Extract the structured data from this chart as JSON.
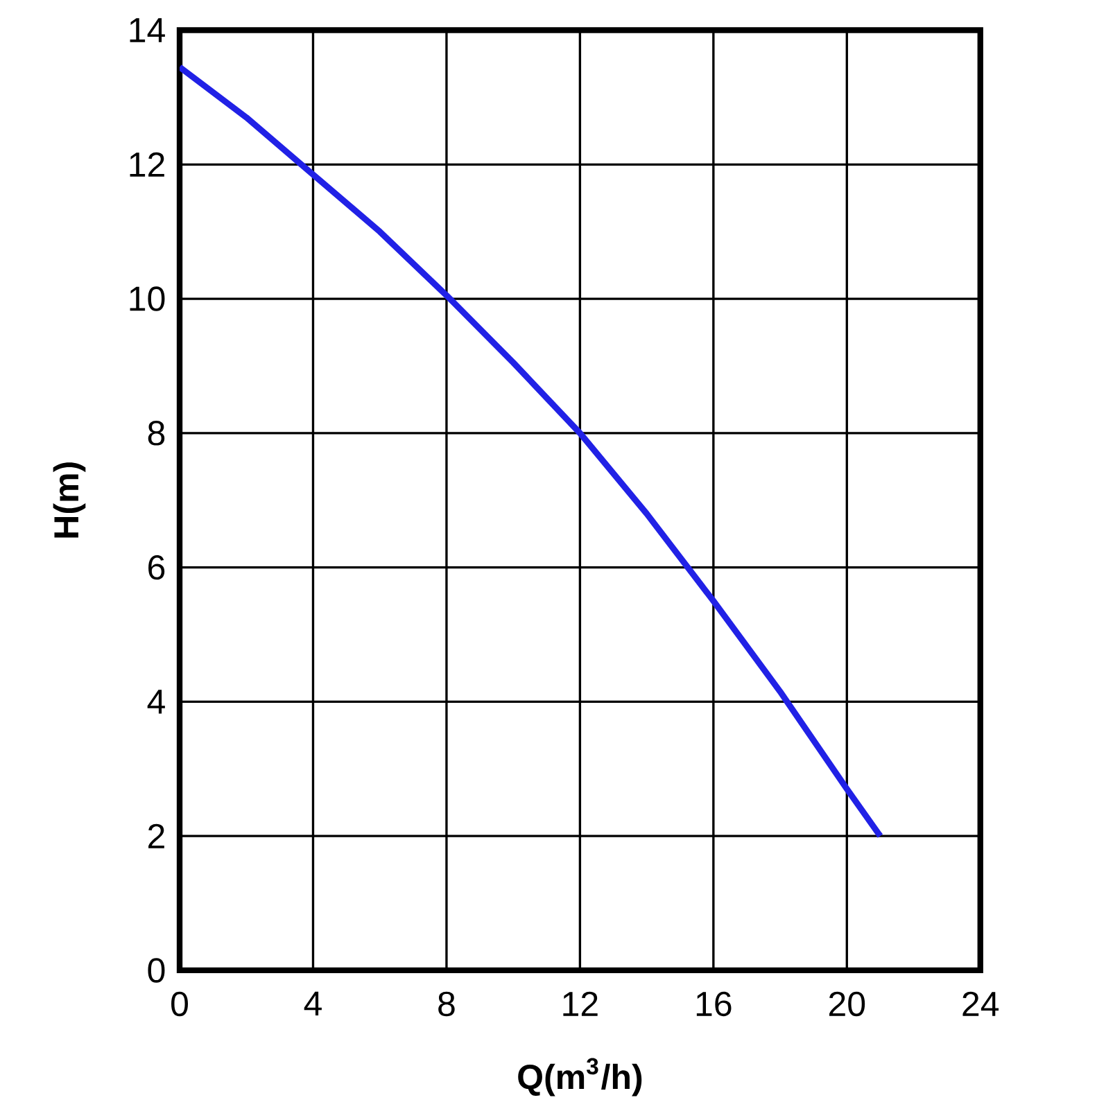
{
  "chart_data": {
    "type": "line",
    "xlabel": "Q(m$^{3}$/h)",
    "ylabel": "H(m)",
    "x": [
      0,
      2,
      4,
      6,
      8,
      10,
      12,
      14,
      16,
      18,
      20,
      21
    ],
    "series": [
      {
        "color": "#2121e6",
        "values": [
          13.45,
          12.7,
          11.85,
          11.0,
          10.05,
          9.05,
          8.0,
          6.8,
          5.5,
          4.15,
          2.7,
          2.0
        ]
      }
    ],
    "xlim": [
      0,
      24
    ],
    "ylim": [
      0,
      14
    ],
    "xticks": [
      0,
      4,
      8,
      12,
      16,
      20,
      24
    ],
    "yticks": [
      0,
      2,
      4,
      6,
      8,
      10,
      12,
      14
    ],
    "grid": true,
    "marker": "none",
    "line_style": "solid"
  }
}
